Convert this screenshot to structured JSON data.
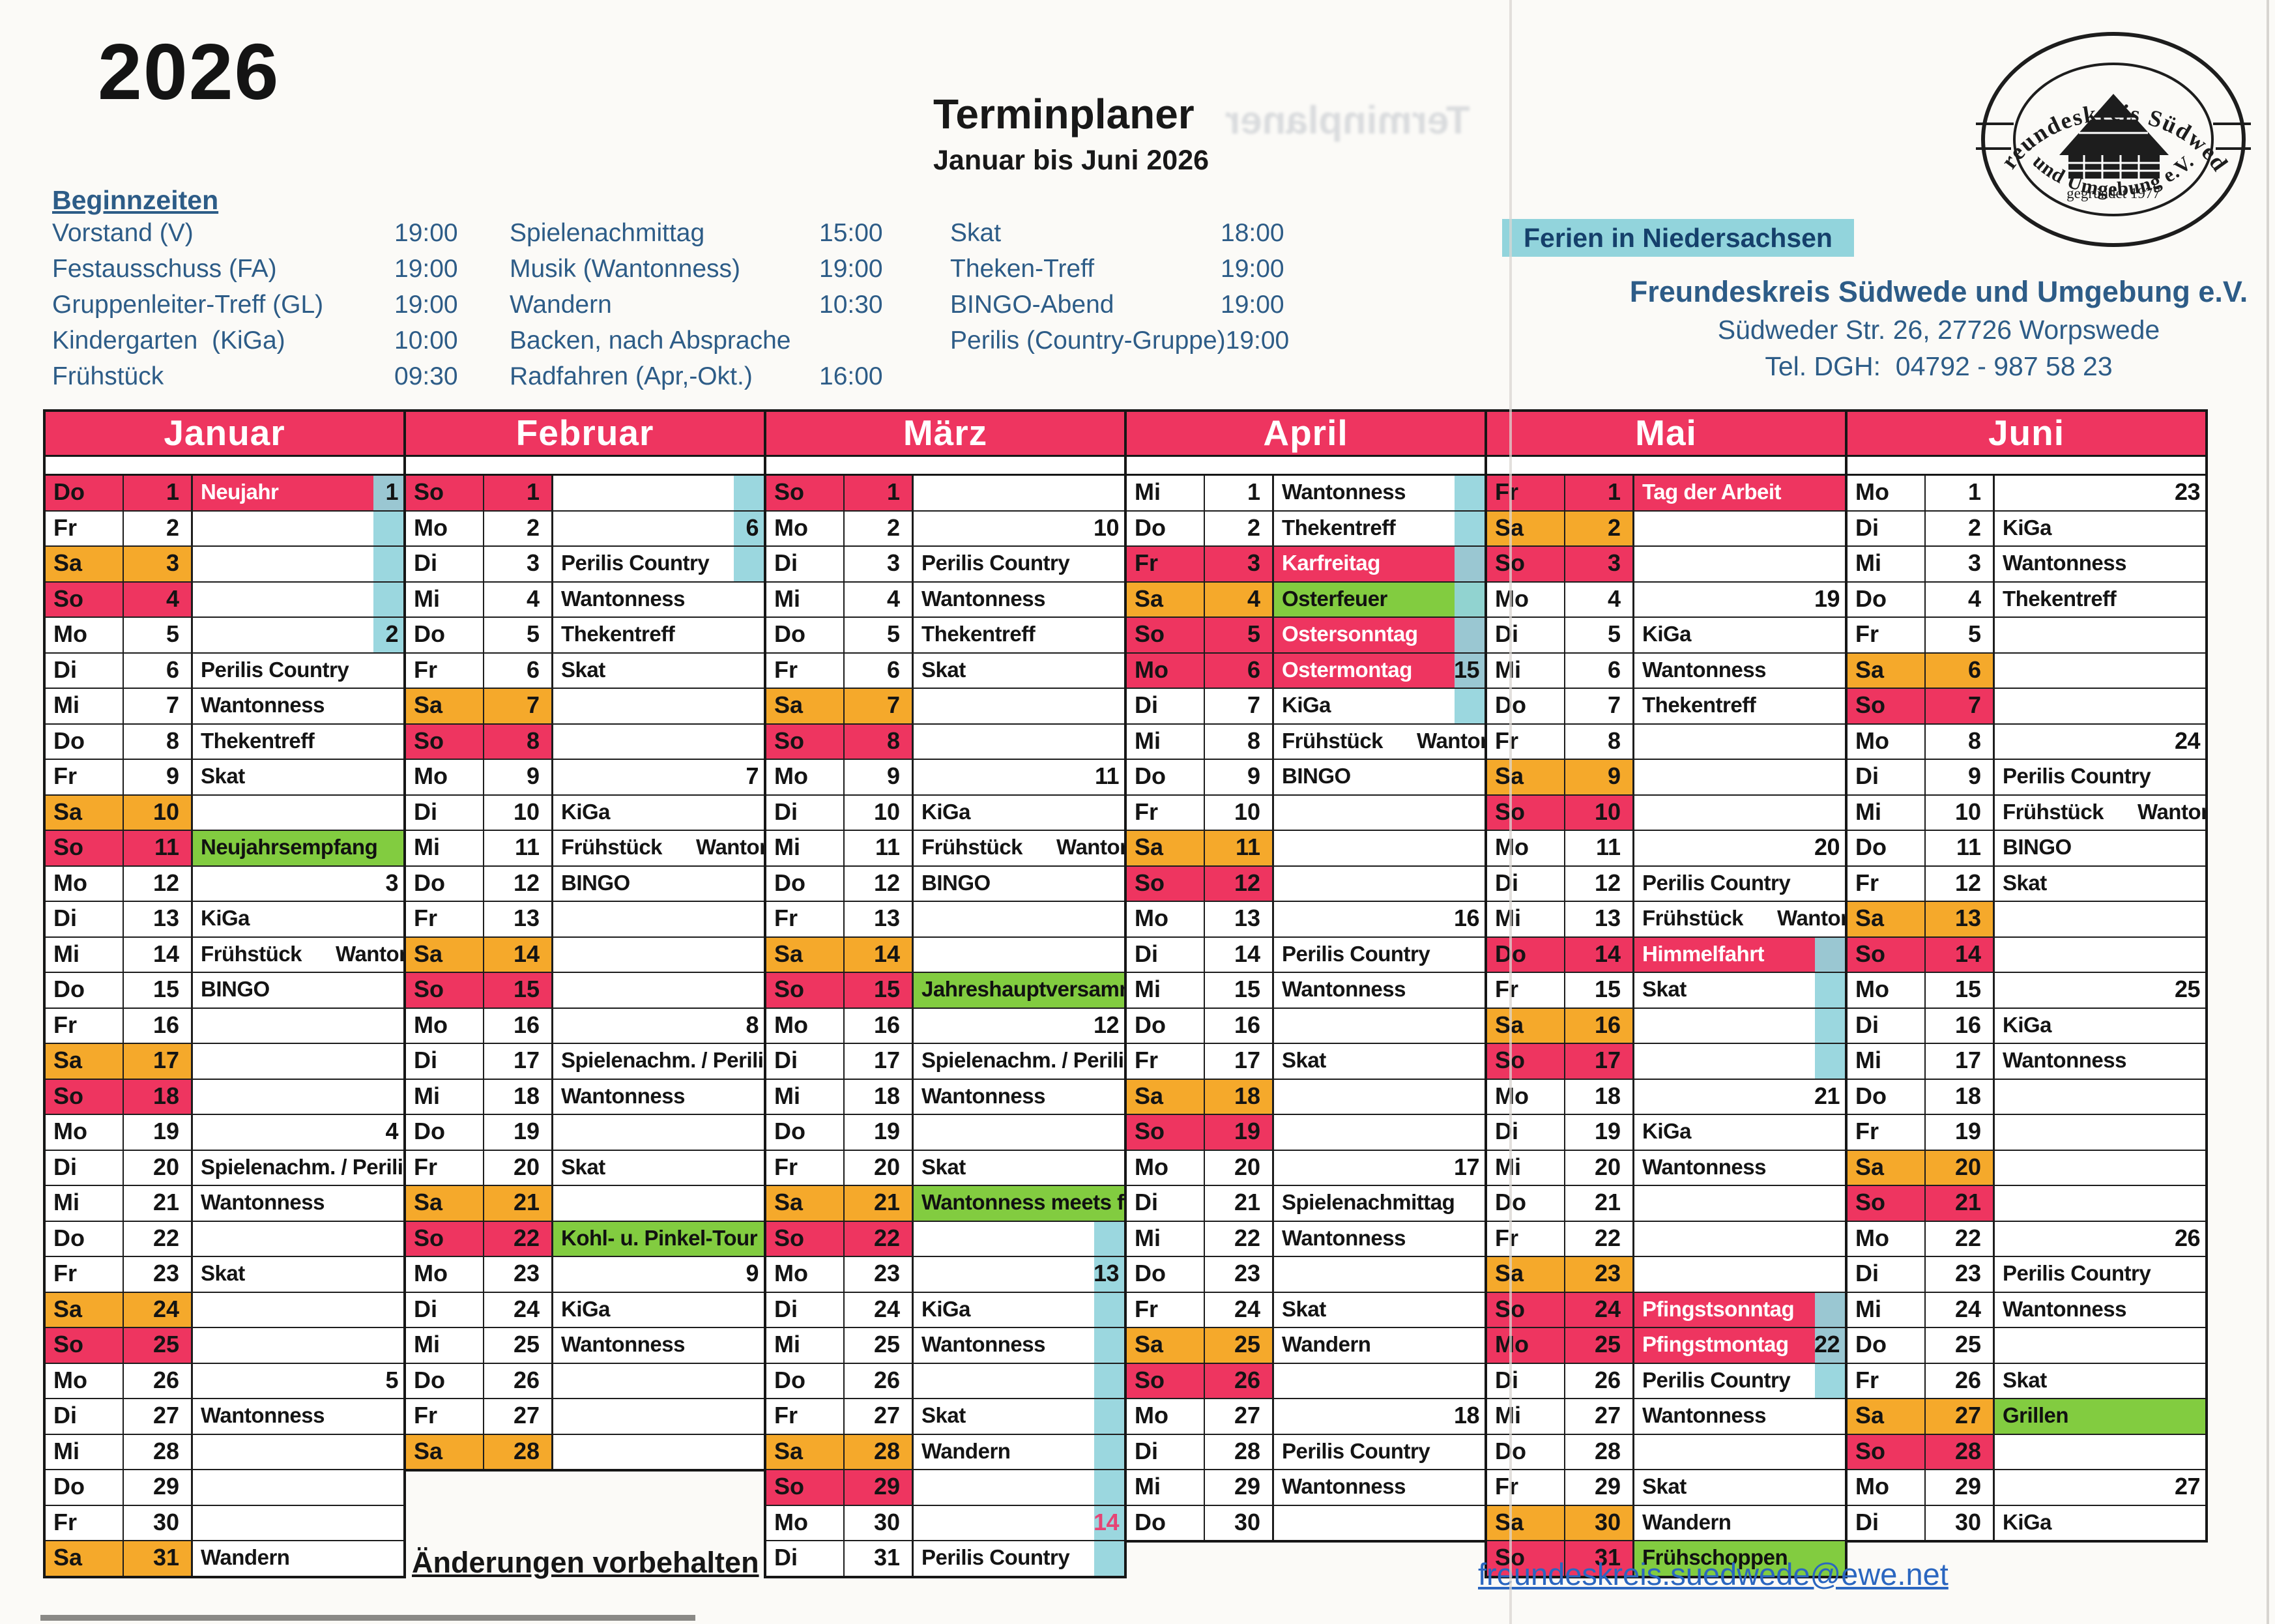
{
  "colors": {
    "pink": "#ee3560",
    "orange": "#f5a92b",
    "green": "#82cc40",
    "cyan": "#92d4dc",
    "ink": "#2d5c87",
    "email_blue": "#2a66c0"
  },
  "header": {
    "year": "2026",
    "title": "Terminplaner",
    "subtitle": "Januar bis Juni 2026",
    "ferien_note": "Ferien in Niedersachsen"
  },
  "legend": {
    "heading": "Beginnzeiten",
    "columns": [
      [
        {
          "label": "Vorstand (V)",
          "time": "19:00"
        },
        {
          "label": "Festausschuss (FA)",
          "time": "19:00"
        },
        {
          "label": "Gruppenleiter-Treff (GL)",
          "time": "19:00"
        },
        {
          "label": "Kindergarten  (KiGa)",
          "time": "10:00"
        },
        {
          "label": "Frühstück",
          "time": "09:30"
        }
      ],
      [
        {
          "label": "Spielenachmittag",
          "time": "15:00"
        },
        {
          "label": "Musik (Wantonness)",
          "time": "19:00"
        },
        {
          "label": "Wandern",
          "time": "10:30"
        },
        {
          "label": "Backen, nach Absprache",
          "time": ""
        },
        {
          "label": "Radfahren (Apr,-Okt.)",
          "time": "16:00"
        }
      ],
      [
        {
          "label": "Skat",
          "time": "18:00"
        },
        {
          "label": "Theken-Treff",
          "time": "19:00"
        },
        {
          "label": "BINGO-Abend",
          "time": "19:00"
        },
        {
          "label": "Perilis (Country-Gruppe)",
          "time": "19:00"
        }
      ]
    ]
  },
  "club": {
    "name": "Freundeskreis Südwede und Umgebung e.V.",
    "address": "Südweder Str. 26, 27726 Worpswede",
    "phone": "Tel. DGH:  04792 - 987 58 23"
  },
  "logo": {
    "arc_top": "Freundeskreis Südwede",
    "arc_bottom": "und Umgebung e.V.",
    "founded": "gegründet 1977"
  },
  "footer": {
    "note": "Änderungen vorbehalten",
    "email": "freundeskreis.suedwede@ewe.net"
  },
  "months": [
    {
      "name": "Januar",
      "days": [
        {
          "d": 1,
          "w": "Do",
          "e": "Neujahr",
          "t": "h",
          "wk": 1,
          "f": true
        },
        {
          "d": 2,
          "w": "Fr",
          "f": true
        },
        {
          "d": 3,
          "w": "Sa",
          "f": true
        },
        {
          "d": 4,
          "w": "So",
          "f": true
        },
        {
          "d": 5,
          "w": "Mo",
          "wk": 2,
          "f": true
        },
        {
          "d": 6,
          "w": "Di",
          "e": "Perilis Country"
        },
        {
          "d": 7,
          "w": "Mi",
          "e": "Wantonness"
        },
        {
          "d": 8,
          "w": "Do",
          "e": "Thekentreff"
        },
        {
          "d": 9,
          "w": "Fr",
          "e": "Skat"
        },
        {
          "d": 10,
          "w": "Sa"
        },
        {
          "d": 11,
          "w": "So",
          "e": "Neujahrsempfang",
          "t": "g"
        },
        {
          "d": 12,
          "w": "Mo",
          "wk": 3
        },
        {
          "d": 13,
          "w": "Di",
          "e": "KiGa"
        },
        {
          "d": 14,
          "w": "Mi",
          "e": "Frühstück      Wantonness"
        },
        {
          "d": 15,
          "w": "Do",
          "e": "BINGO"
        },
        {
          "d": 16,
          "w": "Fr"
        },
        {
          "d": 17,
          "w": "Sa"
        },
        {
          "d": 18,
          "w": "So"
        },
        {
          "d": 19,
          "w": "Mo",
          "wk": 4
        },
        {
          "d": 20,
          "w": "Di",
          "e": "Spielenachm. / Perilis Count"
        },
        {
          "d": 21,
          "w": "Mi",
          "e": "Wantonness"
        },
        {
          "d": 22,
          "w": "Do"
        },
        {
          "d": 23,
          "w": "Fr",
          "e": "Skat"
        },
        {
          "d": 24,
          "w": "Sa"
        },
        {
          "d": 25,
          "w": "So"
        },
        {
          "d": 26,
          "w": "Mo",
          "wk": 5
        },
        {
          "d": 27,
          "w": "Di",
          "e": "Wantonness"
        },
        {
          "d": 28,
          "w": "Mi"
        },
        {
          "d": 29,
          "w": "Do"
        },
        {
          "d": 30,
          "w": "Fr"
        },
        {
          "d": 31,
          "w": "Sa",
          "e": "Wandern"
        }
      ]
    },
    {
      "name": "Februar",
      "days": [
        {
          "d": 1,
          "w": "So",
          "f": true
        },
        {
          "d": 2,
          "w": "Mo",
          "wk": 6,
          "f": true
        },
        {
          "d": 3,
          "w": "Di",
          "e": "Perilis Country",
          "f": true
        },
        {
          "d": 4,
          "w": "Mi",
          "e": "Wantonness"
        },
        {
          "d": 5,
          "w": "Do",
          "e": "Thekentreff"
        },
        {
          "d": 6,
          "w": "Fr",
          "e": "Skat"
        },
        {
          "d": 7,
          "w": "Sa"
        },
        {
          "d": 8,
          "w": "So"
        },
        {
          "d": 9,
          "w": "Mo",
          "wk": 7
        },
        {
          "d": 10,
          "w": "Di",
          "e": "KiGa"
        },
        {
          "d": 11,
          "w": "Mi",
          "e": "Frühstück      Wantonness"
        },
        {
          "d": 12,
          "w": "Do",
          "e": "BINGO"
        },
        {
          "d": 13,
          "w": "Fr"
        },
        {
          "d": 14,
          "w": "Sa"
        },
        {
          "d": 15,
          "w": "So"
        },
        {
          "d": 16,
          "w": "Mo",
          "wk": 8
        },
        {
          "d": 17,
          "w": "Di",
          "e": "Spielenachm. / Perilis Count"
        },
        {
          "d": 18,
          "w": "Mi",
          "e": "Wantonness"
        },
        {
          "d": 19,
          "w": "Do"
        },
        {
          "d": 20,
          "w": "Fr",
          "e": "Skat"
        },
        {
          "d": 21,
          "w": "Sa"
        },
        {
          "d": 22,
          "w": "So",
          "e": "Kohl- u. Pinkel-Tour",
          "t": "g"
        },
        {
          "d": 23,
          "w": "Mo",
          "wk": 9
        },
        {
          "d": 24,
          "w": "Di",
          "e": "KiGa"
        },
        {
          "d": 25,
          "w": "Mi",
          "e": "Wantonness"
        },
        {
          "d": 26,
          "w": "Do"
        },
        {
          "d": 27,
          "w": "Fr"
        },
        {
          "d": 28,
          "w": "Sa"
        }
      ]
    },
    {
      "name": "März",
      "days": [
        {
          "d": 1,
          "w": "So"
        },
        {
          "d": 2,
          "w": "Mo",
          "wk": 10
        },
        {
          "d": 3,
          "w": "Di",
          "e": "Perilis Country"
        },
        {
          "d": 4,
          "w": "Mi",
          "e": "Wantonness"
        },
        {
          "d": 5,
          "w": "Do",
          "e": "Thekentreff"
        },
        {
          "d": 6,
          "w": "Fr",
          "e": "Skat"
        },
        {
          "d": 7,
          "w": "Sa"
        },
        {
          "d": 8,
          "w": "So"
        },
        {
          "d": 9,
          "w": "Mo",
          "wk": 11
        },
        {
          "d": 10,
          "w": "Di",
          "e": "KiGa"
        },
        {
          "d": 11,
          "w": "Mi",
          "e": "Frühstück      Wantonness"
        },
        {
          "d": 12,
          "w": "Do",
          "e": "BINGO"
        },
        {
          "d": 13,
          "w": "Fr"
        },
        {
          "d": 14,
          "w": "Sa"
        },
        {
          "d": 15,
          "w": "So",
          "e": "Jahreshauptversamml",
          "t": "g"
        },
        {
          "d": 16,
          "w": "Mo",
          "wk": 12
        },
        {
          "d": 17,
          "w": "Di",
          "e": "Spielenachm. / Perilis Count"
        },
        {
          "d": 18,
          "w": "Mi",
          "e": "Wantonness"
        },
        {
          "d": 19,
          "w": "Do"
        },
        {
          "d": 20,
          "w": "Fr",
          "e": "Skat"
        },
        {
          "d": 21,
          "w": "Sa",
          "e": "Wantonness meets friends",
          "t": "g"
        },
        {
          "d": 22,
          "w": "So",
          "f": true
        },
        {
          "d": 23,
          "w": "Mo",
          "wk": 13,
          "f": true
        },
        {
          "d": 24,
          "w": "Di",
          "e": "KiGa",
          "f": true
        },
        {
          "d": 25,
          "w": "Mi",
          "e": "Wantonness",
          "f": true
        },
        {
          "d": 26,
          "w": "Do",
          "f": true
        },
        {
          "d": 27,
          "w": "Fr",
          "e": "Skat",
          "f": true
        },
        {
          "d": 28,
          "w": "Sa",
          "e": "Wandern",
          "f": true
        },
        {
          "d": 29,
          "w": "So",
          "f": true
        },
        {
          "d": 30,
          "w": "Mo",
          "wk": 14,
          "wkr": true,
          "f": true
        },
        {
          "d": 31,
          "w": "Di",
          "e": "Perilis Country",
          "f": true
        }
      ]
    },
    {
      "name": "April",
      "days": [
        {
          "d": 1,
          "w": "Mi",
          "e": "Wantonness",
          "f": true
        },
        {
          "d": 2,
          "w": "Do",
          "e": "Thekentreff",
          "f": true
        },
        {
          "d": 3,
          "w": "Fr",
          "e": "Karfreitag",
          "t": "h",
          "f": true
        },
        {
          "d": 4,
          "w": "Sa",
          "e": "Osterfeuer",
          "t": "g",
          "f": true
        },
        {
          "d": 5,
          "w": "So",
          "e": "Ostersonntag",
          "t": "h",
          "f": true
        },
        {
          "d": 6,
          "w": "Mo",
          "e": "Ostermontag",
          "t": "h",
          "wk": 15,
          "f": true
        },
        {
          "d": 7,
          "w": "Di",
          "e": "KiGa",
          "f": true
        },
        {
          "d": 8,
          "w": "Mi",
          "e": "Frühstück      Wantonness"
        },
        {
          "d": 9,
          "w": "Do",
          "e": "BINGO"
        },
        {
          "d": 10,
          "w": "Fr"
        },
        {
          "d": 11,
          "w": "Sa"
        },
        {
          "d": 12,
          "w": "So"
        },
        {
          "d": 13,
          "w": "Mo",
          "wk": 16
        },
        {
          "d": 14,
          "w": "Di",
          "e": "Perilis Country"
        },
        {
          "d": 15,
          "w": "Mi",
          "e": "Wantonness"
        },
        {
          "d": 16,
          "w": "Do"
        },
        {
          "d": 17,
          "w": "Fr",
          "e": "Skat"
        },
        {
          "d": 18,
          "w": "Sa"
        },
        {
          "d": 19,
          "w": "So"
        },
        {
          "d": 20,
          "w": "Mo",
          "wk": 17
        },
        {
          "d": 21,
          "w": "Di",
          "e": "Spielenachmittag"
        },
        {
          "d": 22,
          "w": "Mi",
          "e": "Wantonness"
        },
        {
          "d": 23,
          "w": "Do"
        },
        {
          "d": 24,
          "w": "Fr",
          "e": "Skat"
        },
        {
          "d": 25,
          "w": "Sa",
          "e": "Wandern"
        },
        {
          "d": 26,
          "w": "So"
        },
        {
          "d": 27,
          "w": "Mo",
          "wk": 18
        },
        {
          "d": 28,
          "w": "Di",
          "e": "Perilis Country"
        },
        {
          "d": 29,
          "w": "Mi",
          "e": "Wantonness"
        },
        {
          "d": 30,
          "w": "Do"
        }
      ]
    },
    {
      "name": "Mai",
      "days": [
        {
          "d": 1,
          "w": "Fr",
          "e": "Tag der Arbeit",
          "t": "h"
        },
        {
          "d": 2,
          "w": "Sa"
        },
        {
          "d": 3,
          "w": "So"
        },
        {
          "d": 4,
          "w": "Mo",
          "wk": 19
        },
        {
          "d": 5,
          "w": "Di",
          "e": "KiGa"
        },
        {
          "d": 6,
          "w": "Mi",
          "e": "Wantonness"
        },
        {
          "d": 7,
          "w": "Do",
          "e": "Thekentreff"
        },
        {
          "d": 8,
          "w": "Fr"
        },
        {
          "d": 9,
          "w": "Sa"
        },
        {
          "d": 10,
          "w": "So"
        },
        {
          "d": 11,
          "w": "Mo",
          "wk": 20
        },
        {
          "d": 12,
          "w": "Di",
          "e": "Perilis Country"
        },
        {
          "d": 13,
          "w": "Mi",
          "e": "Frühstück      Wantonness"
        },
        {
          "d": 14,
          "w": "Do",
          "e": "Himmelfahrt",
          "t": "h",
          "f": true
        },
        {
          "d": 15,
          "w": "Fr",
          "e": "Skat",
          "f": true
        },
        {
          "d": 16,
          "w": "Sa",
          "f": true
        },
        {
          "d": 17,
          "w": "So",
          "f": true
        },
        {
          "d": 18,
          "w": "Mo",
          "wk": 21
        },
        {
          "d": 19,
          "w": "Di",
          "e": "KiGa"
        },
        {
          "d": 20,
          "w": "Mi",
          "e": "Wantonness"
        },
        {
          "d": 21,
          "w": "Do"
        },
        {
          "d": 22,
          "w": "Fr"
        },
        {
          "d": 23,
          "w": "Sa"
        },
        {
          "d": 24,
          "w": "So",
          "e": "Pfingstsonntag",
          "t": "h",
          "f": true
        },
        {
          "d": 25,
          "w": "Mo",
          "e": "Pfingstmontag",
          "t": "h",
          "wk": 22,
          "f": true
        },
        {
          "d": 26,
          "w": "Di",
          "e": "Perilis Country",
          "f": true
        },
        {
          "d": 27,
          "w": "Mi",
          "e": "Wantonness"
        },
        {
          "d": 28,
          "w": "Do"
        },
        {
          "d": 29,
          "w": "Fr",
          "e": "Skat"
        },
        {
          "d": 30,
          "w": "Sa",
          "e": "Wandern"
        },
        {
          "d": 31,
          "w": "So",
          "e": "Frühschoppen",
          "t": "g"
        }
      ]
    },
    {
      "name": "Juni",
      "days": [
        {
          "d": 1,
          "w": "Mo",
          "wk": 23
        },
        {
          "d": 2,
          "w": "Di",
          "e": "KiGa"
        },
        {
          "d": 3,
          "w": "Mi",
          "e": "Wantonness"
        },
        {
          "d": 4,
          "w": "Do",
          "e": "Thekentreff"
        },
        {
          "d": 5,
          "w": "Fr"
        },
        {
          "d": 6,
          "w": "Sa"
        },
        {
          "d": 7,
          "w": "So"
        },
        {
          "d": 8,
          "w": "Mo",
          "wk": 24
        },
        {
          "d": 9,
          "w": "Di",
          "e": "Perilis Country"
        },
        {
          "d": 10,
          "w": "Mi",
          "e": "Frühstück      Wantonness"
        },
        {
          "d": 11,
          "w": "Do",
          "e": "BINGO"
        },
        {
          "d": 12,
          "w": "Fr",
          "e": "Skat"
        },
        {
          "d": 13,
          "w": "Sa"
        },
        {
          "d": 14,
          "w": "So"
        },
        {
          "d": 15,
          "w": "Mo",
          "wk": 25
        },
        {
          "d": 16,
          "w": "Di",
          "e": "KiGa"
        },
        {
          "d": 17,
          "w": "Mi",
          "e": "Wantonness"
        },
        {
          "d": 18,
          "w": "Do"
        },
        {
          "d": 19,
          "w": "Fr"
        },
        {
          "d": 20,
          "w": "Sa"
        },
        {
          "d": 21,
          "w": "So"
        },
        {
          "d": 22,
          "w": "Mo",
          "wk": 26
        },
        {
          "d": 23,
          "w": "Di",
          "e": "Perilis Country"
        },
        {
          "d": 24,
          "w": "Mi",
          "e": "Wantonness"
        },
        {
          "d": 25,
          "w": "Do"
        },
        {
          "d": 26,
          "w": "Fr",
          "e": "Skat"
        },
        {
          "d": 27,
          "w": "Sa",
          "e": "Grillen",
          "t": "g"
        },
        {
          "d": 28,
          "w": "So"
        },
        {
          "d": 29,
          "w": "Mo",
          "wk": 27
        },
        {
          "d": 30,
          "w": "Di",
          "e": "KiGa"
        }
      ]
    }
  ]
}
